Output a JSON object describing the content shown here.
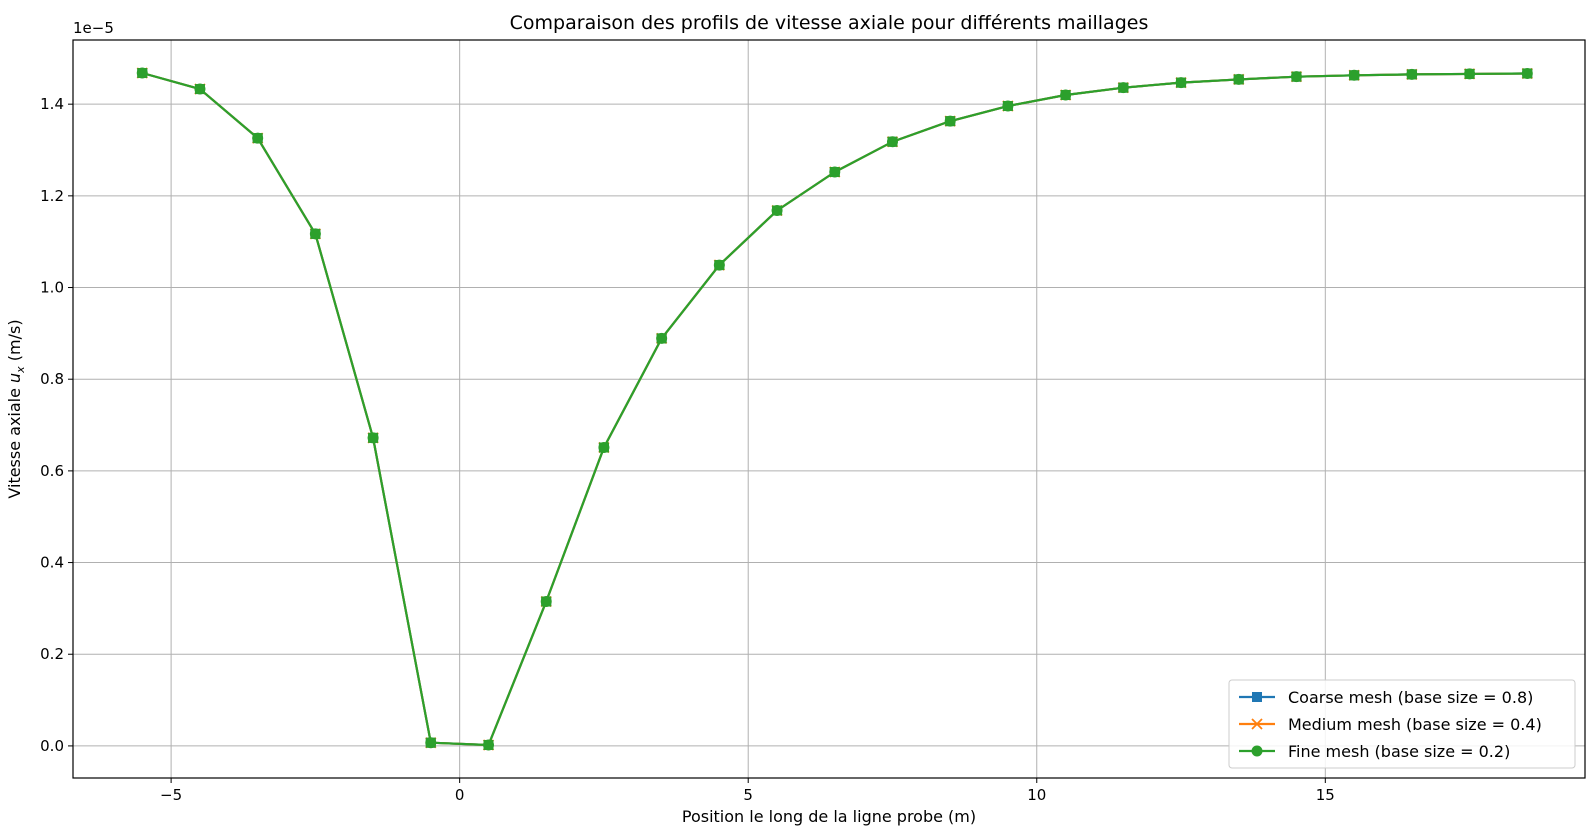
{
  "chart_data": {
    "type": "line",
    "title": "Comparaison des profils de vitesse axiale pour différents maillages",
    "xlabel": "Position le long de la ligne probe (m)",
    "ylabel_prefix": "Vitesse axiale ",
    "ylabel_symbol": "u",
    "ylabel_subscript": "x",
    "ylabel_unit": " (m/s)",
    "y_offset_text": "1e−5",
    "xlim": [
      -6.7,
      19.5
    ],
    "ylim": [
      -0.07,
      1.54
    ],
    "xticks": [
      -5,
      0,
      5,
      10,
      15
    ],
    "xtick_labels": [
      "−5",
      "0",
      "5",
      "10",
      "15"
    ],
    "yticks": [
      0.0,
      0.2,
      0.4,
      0.6,
      0.8,
      1.0,
      1.2,
      1.4
    ],
    "ytick_labels": [
      "0.0",
      "0.2",
      "0.4",
      "0.6",
      "0.8",
      "1.0",
      "1.2",
      "1.4"
    ],
    "grid": true,
    "legend_position": "lower right",
    "x": [
      -5.5,
      -4.5,
      -3.5,
      -2.5,
      -1.5,
      -0.5,
      0.5,
      1.5,
      2.5,
      3.5,
      4.5,
      5.5,
      6.5,
      7.5,
      8.5,
      9.5,
      10.5,
      11.5,
      12.5,
      13.5,
      14.5,
      15.5,
      16.5,
      17.5,
      18.5
    ],
    "series": [
      {
        "name": "Coarse mesh (base size = 0.8)",
        "color": "#1f77b4",
        "marker": "square",
        "values": [
          1.468,
          1.433,
          1.326,
          1.117,
          0.672,
          0.007,
          0.002,
          0.315,
          0.651,
          0.889,
          1.049,
          1.168,
          1.252,
          1.318,
          1.363,
          1.396,
          1.42,
          1.436,
          1.447,
          1.454,
          1.46,
          1.463,
          1.465,
          1.466,
          1.467
        ]
      },
      {
        "name": "Medium mesh (base size = 0.4)",
        "color": "#ff7f0e",
        "marker": "x",
        "values": [
          1.468,
          1.433,
          1.326,
          1.117,
          0.672,
          0.007,
          0.002,
          0.315,
          0.651,
          0.889,
          1.049,
          1.168,
          1.252,
          1.318,
          1.363,
          1.396,
          1.42,
          1.436,
          1.447,
          1.454,
          1.46,
          1.463,
          1.465,
          1.466,
          1.467
        ]
      },
      {
        "name": "Fine mesh (base size = 0.2)",
        "color": "#2ca02c",
        "marker": "circle",
        "values": [
          1.468,
          1.433,
          1.326,
          1.117,
          0.672,
          0.007,
          0.002,
          0.315,
          0.651,
          0.889,
          1.049,
          1.168,
          1.252,
          1.318,
          1.363,
          1.396,
          1.42,
          1.436,
          1.447,
          1.454,
          1.46,
          1.463,
          1.465,
          1.466,
          1.467
        ]
      }
    ]
  }
}
